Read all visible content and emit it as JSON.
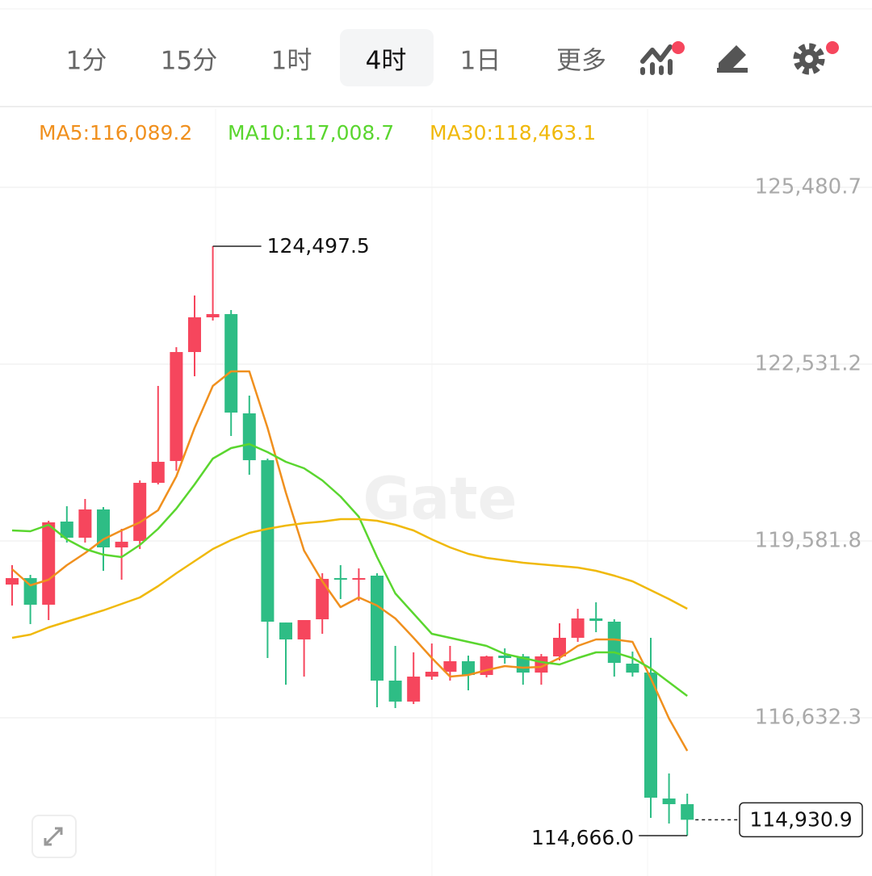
{
  "tabs": [
    "1分",
    "15分",
    "1时",
    "4时",
    "1日",
    "更多"
  ],
  "active_tab": 3,
  "chart_data": {
    "type": "candlestick",
    "watermark": "Gate",
    "up_color": "#f6465d",
    "down_color": "#2ebd85",
    "ylim": [
      113992.6,
      126787.2
    ],
    "yticks": [
      {
        "value": 125480.7,
        "label": "125,480.7"
      },
      {
        "value": 122531.2,
        "label": "122,531.2"
      },
      {
        "value": 119581.8,
        "label": "119,581.8"
      },
      {
        "value": 116632.3,
        "label": "116,632.3"
      }
    ],
    "grid": true,
    "open": [
      118854,
      118962,
      118518,
      119905,
      119636,
      120107,
      119474,
      119582,
      120551,
      120915,
      122733,
      123312,
      123366,
      121710,
      120929,
      118221,
      117939,
      118275,
      118962,
      118935,
      119003,
      117252,
      116902,
      117319,
      117400,
      117575,
      117346,
      117669,
      117656,
      117386,
      117656,
      117966,
      118289,
      118235,
      117535,
      117386,
      115285,
      115191
    ],
    "high": [
      119178,
      119016,
      119919,
      120161,
      120282,
      120147,
      119784,
      120592,
      122168,
      122814,
      123676,
      124497.5,
      123434,
      122006,
      120955,
      118221,
      118262,
      119043,
      119178,
      119124,
      119043,
      117831,
      117723,
      117871,
      117831,
      117669,
      117669,
      117790,
      117696,
      117696,
      118208,
      118450,
      118558,
      118275,
      117736,
      117966,
      115703,
      115366
    ],
    "low": [
      118504,
      118195,
      118262,
      119555,
      119555,
      119083,
      118935,
      119447,
      120524,
      120753,
      122329,
      123258,
      121333,
      120686,
      117629,
      117184,
      117319,
      118033,
      118612,
      118585,
      116807,
      116794,
      116861,
      117265,
      117252,
      117090,
      117306,
      117535,
      117184,
      117184,
      117589,
      117898,
      118060,
      117319,
      117319,
      114962,
      114868,
      114666.0
    ],
    "close": [
      118962,
      118518,
      119892,
      119636,
      120107,
      119474,
      119568,
      120551,
      120902,
      122733,
      123312,
      123366,
      121723,
      120929,
      118235,
      117939,
      118262,
      118949,
      118935,
      118962,
      117252,
      116902,
      117319,
      117400,
      117575,
      117346,
      117656,
      117629,
      117386,
      117656,
      117966,
      118289,
      118248,
      117548,
      117386,
      115299,
      115191,
      114930.9
    ],
    "series": [
      {
        "name": "MA5:116,089.2",
        "color": "#f0901e",
        "values": [
          119111,
          118841,
          118935,
          119178,
          119380,
          119609,
          119757,
          119892,
          120094,
          120659,
          121468,
          122168,
          122410,
          122410,
          121468,
          120390,
          119420,
          118908,
          118478,
          118639,
          118504,
          118289,
          117966,
          117629,
          117319,
          117346,
          117427,
          117494,
          117467,
          117481,
          117629,
          117831,
          117939,
          117939,
          117898,
          117292,
          116619,
          116080
        ]
      },
      {
        "name": "MA10:117,008.7",
        "color": "#5ad62f",
        "values": [
          119757,
          119744,
          119851,
          119609,
          119447,
          119353,
          119313,
          119515,
          119784,
          120121,
          120525,
          120956,
          121131,
          121198,
          121063,
          120902,
          120794,
          120592,
          120323,
          119986,
          119313,
          118707,
          118370,
          118033,
          117966,
          117898,
          117831,
          117696,
          117629,
          117562,
          117521,
          117629,
          117723,
          117723,
          117629,
          117454,
          117225,
          116996
        ]
      },
      {
        "name": "MA30:118,463.1",
        "color": "#f0b90b",
        "values": [
          117966,
          118020,
          118141,
          118235,
          118329,
          118424,
          118531,
          118639,
          118828,
          119043,
          119245,
          119447,
          119595,
          119717,
          119784,
          119838,
          119878,
          119905,
          119946,
          119946,
          119919,
          119851,
          119757,
          119609,
          119474,
          119367,
          119299,
          119259,
          119218,
          119191,
          119164,
          119138,
          119084,
          119003,
          118908,
          118760,
          118612,
          118451
        ]
      }
    ],
    "max_marker": {
      "value": 124497.5,
      "label": "124,497.5"
    },
    "min_marker": {
      "value": 114666.0,
      "label": "114,666.0"
    },
    "last_price": {
      "value": 114930.9,
      "label": "114,930.9"
    }
  }
}
